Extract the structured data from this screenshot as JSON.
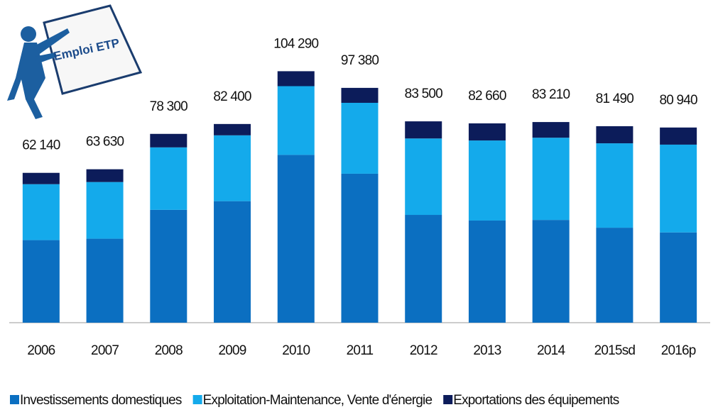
{
  "chart_data": {
    "type": "stacked_bar",
    "title": "Emploi ETP",
    "categories": [
      "2006",
      "2007",
      "2008",
      "2009",
      "2010",
      "2011",
      "2012",
      "2013",
      "2014",
      "2015sd",
      "2016p"
    ],
    "series": [
      {
        "name": "Investissements domestiques",
        "color": "#0b6fc1",
        "values": [
          34240,
          34830,
          46800,
          50400,
          69590,
          61780,
          44700,
          42360,
          42610,
          39390,
          37440
        ]
      },
      {
        "name": "Exploitation-Maintenance, Vente d'énergie",
        "color": "#14aaeb",
        "values": [
          23200,
          23500,
          25900,
          27300,
          28500,
          29400,
          31700,
          33200,
          34100,
          35000,
          36400
        ]
      },
      {
        "name": "Exportations des équipements",
        "color": "#0c1c5a",
        "values": [
          4700,
          5300,
          5600,
          4700,
          6200,
          6200,
          7100,
          7100,
          6500,
          7100,
          7100
        ]
      }
    ],
    "totals": [
      62140,
      63630,
      78300,
      82400,
      104290,
      97380,
      83500,
      82660,
      83210,
      81490,
      80940
    ],
    "total_labels": [
      "62 140",
      "63 630",
      "78 300",
      "82 400",
      "104 290",
      "97 380",
      "83 500",
      "82 660",
      "83 210",
      "81 490",
      "80 940"
    ],
    "ylim": [
      0,
      120000
    ]
  }
}
